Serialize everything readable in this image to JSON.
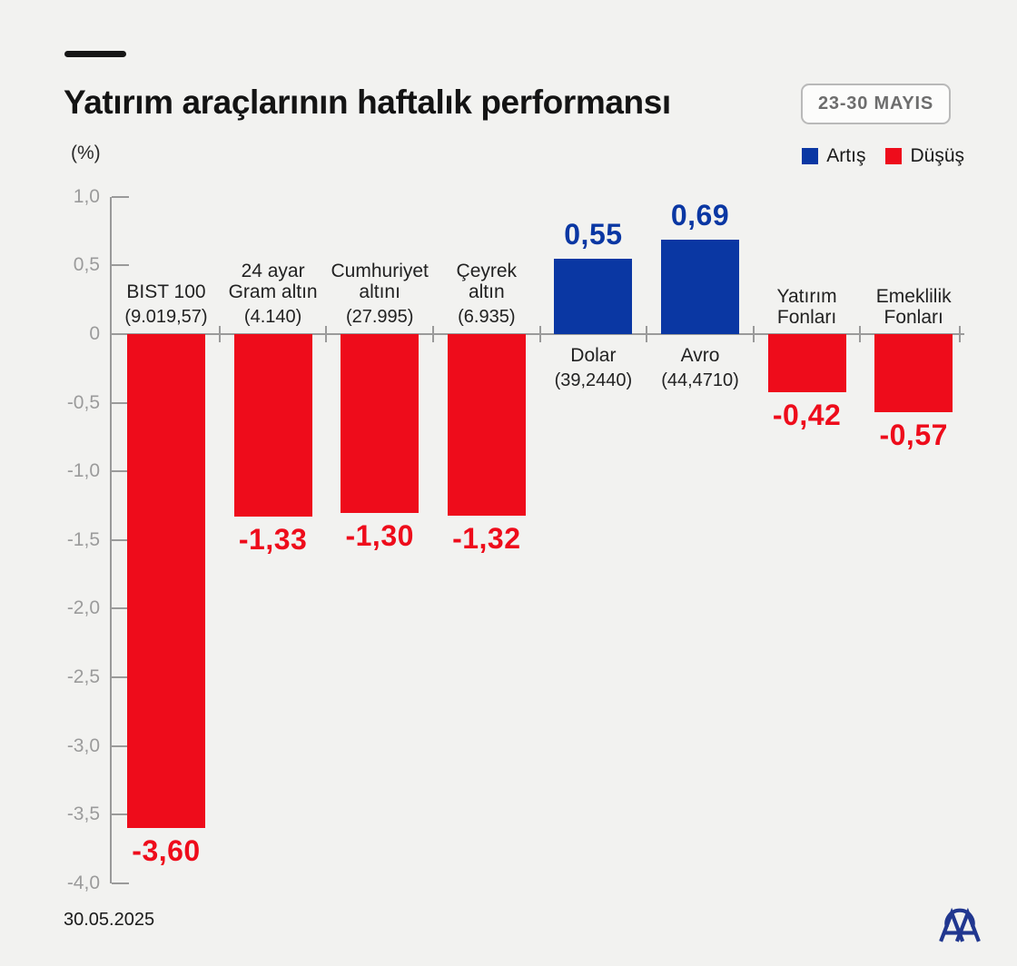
{
  "header": {
    "title": "Yatırım araçlarının haftalık performansı",
    "date_range": "23-30 MAYIS",
    "unit_label": "(%)",
    "legend": [
      {
        "label": "Artış",
        "color": "#0a37a3"
      },
      {
        "label": "Düşüş",
        "color": "#ee0c1b"
      }
    ]
  },
  "chart_data": {
    "type": "bar",
    "title": "Yatırım araçlarının haftalık performansı",
    "ylabel": "%",
    "ylim": [
      -4.0,
      1.0
    ],
    "ytick_step": 0.5,
    "ytick_labels": [
      "1,0",
      "0,5",
      "0",
      "-0,5",
      "-1,0",
      "-1,5",
      "-2,0",
      "-2,5",
      "-3,0",
      "-3,5",
      "-4,0"
    ],
    "grid": false,
    "legend_position": "top-right",
    "colors": {
      "up": "#0a37a3",
      "down": "#ee0c1b"
    },
    "bars": [
      {
        "name_lines": [
          "BIST 100"
        ],
        "detail": "(9.019,57)",
        "value": -3.6,
        "value_label": "-3,60",
        "direction": "down"
      },
      {
        "name_lines": [
          "24 ayar",
          "Gram altın"
        ],
        "detail": "(4.140)",
        "value": -1.33,
        "value_label": "-1,33",
        "direction": "down"
      },
      {
        "name_lines": [
          "Cumhuriyet",
          "altını"
        ],
        "detail": "(27.995)",
        "value": -1.3,
        "value_label": "-1,30",
        "direction": "down"
      },
      {
        "name_lines": [
          "Çeyrek",
          "altın"
        ],
        "detail": "(6.935)",
        "value": -1.32,
        "value_label": "-1,32",
        "direction": "down"
      },
      {
        "name_lines": [
          "Dolar"
        ],
        "detail": "(39,2440)",
        "value": 0.55,
        "value_label": "0,55",
        "direction": "up"
      },
      {
        "name_lines": [
          "Avro"
        ],
        "detail": "(44,4710)",
        "value": 0.69,
        "value_label": "0,69",
        "direction": "up"
      },
      {
        "name_lines": [
          "Yatırım",
          "Fonları"
        ],
        "detail": null,
        "value": -0.42,
        "value_label": "-0,42",
        "direction": "down"
      },
      {
        "name_lines": [
          "Emeklilik",
          "Fonları"
        ],
        "detail": null,
        "value": -0.57,
        "value_label": "-0,57",
        "direction": "down"
      }
    ]
  },
  "footer": {
    "date": "30.05.2025",
    "logo": "AA",
    "logo_color": "#21378f"
  }
}
